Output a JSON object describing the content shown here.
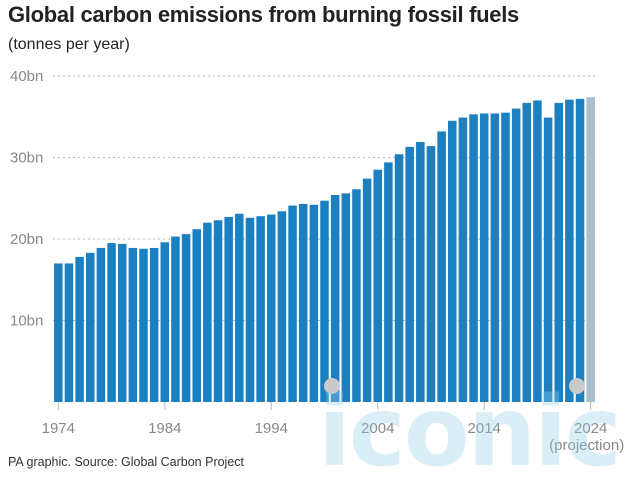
{
  "header": {
    "title": "Global carbon emissions from burning fossil fuels",
    "subtitle": "(tonnes per year)"
  },
  "footer": {
    "source": "PA graphic. Source: Global Carbon Project"
  },
  "watermark": {
    "text": "iconic"
  },
  "colors": {
    "bar": "#1b7fc0",
    "projection_bar": "#a9bfcc",
    "grid": "#bbbbbb",
    "axis_text": "#888888"
  },
  "chart_data": {
    "type": "bar",
    "title": "Global carbon emissions from burning fossil fuels",
    "ylabel": "(tonnes per year)",
    "xlabel": "",
    "ylim": [
      0,
      40
    ],
    "grid": true,
    "y_ticks": [
      {
        "value": 10,
        "label": "10bn"
      },
      {
        "value": 20,
        "label": "20bn"
      },
      {
        "value": 30,
        "label": "30bn"
      },
      {
        "value": 40,
        "label": "40bn"
      }
    ],
    "x_ticks": [
      {
        "year": 1974,
        "label": "1974"
      },
      {
        "year": 1984,
        "label": "1984"
      },
      {
        "year": 1994,
        "label": "1994"
      },
      {
        "year": 2004,
        "label": "2004"
      },
      {
        "year": 2014,
        "label": "2014"
      },
      {
        "year": 2024,
        "label": "2024"
      }
    ],
    "projection_label": "(projection)",
    "categories": [
      1974,
      1975,
      1976,
      1977,
      1978,
      1979,
      1980,
      1981,
      1982,
      1983,
      1984,
      1985,
      1986,
      1987,
      1988,
      1989,
      1990,
      1991,
      1992,
      1993,
      1994,
      1995,
      1996,
      1997,
      1998,
      1999,
      2000,
      2001,
      2002,
      2003,
      2004,
      2005,
      2006,
      2007,
      2008,
      2009,
      2010,
      2011,
      2012,
      2013,
      2014,
      2015,
      2016,
      2017,
      2018,
      2019,
      2020,
      2021,
      2022,
      2023,
      2024
    ],
    "values": [
      17.0,
      17.0,
      17.8,
      18.3,
      18.9,
      19.5,
      19.4,
      18.9,
      18.8,
      18.9,
      19.6,
      20.3,
      20.6,
      21.2,
      22.0,
      22.3,
      22.7,
      23.1,
      22.6,
      22.8,
      23.0,
      23.4,
      24.1,
      24.3,
      24.2,
      24.7,
      25.4,
      25.6,
      26.1,
      27.4,
      28.5,
      29.4,
      30.4,
      31.3,
      31.9,
      31.4,
      33.2,
      34.5,
      34.9,
      35.3,
      35.4,
      35.4,
      35.5,
      36.0,
      36.7,
      37.0,
      34.9,
      36.7,
      37.1,
      37.2,
      37.4
    ],
    "projection_index": 50
  }
}
